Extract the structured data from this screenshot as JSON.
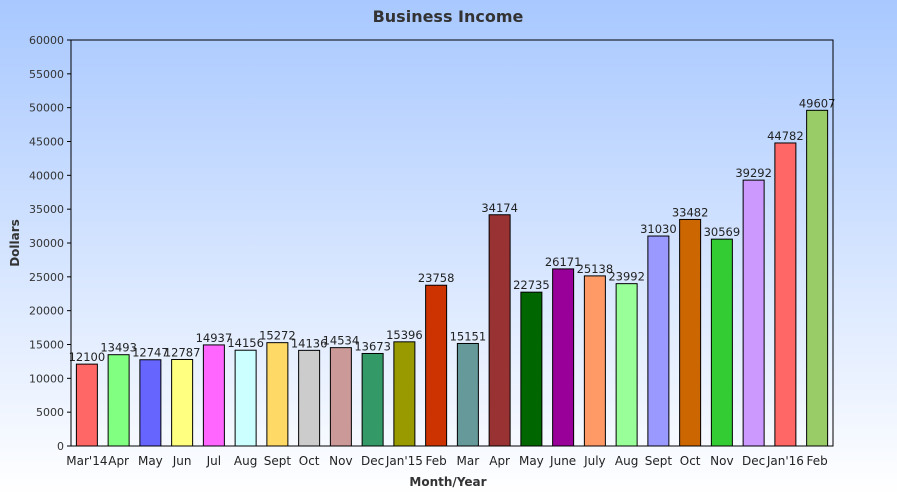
{
  "chart_data": {
    "type": "bar",
    "title": "Business Income",
    "xlabel": "Month/Year",
    "ylabel": "Dollars",
    "ylim": [
      0,
      60000
    ],
    "yticks": [
      0,
      5000,
      10000,
      15000,
      20000,
      25000,
      30000,
      35000,
      40000,
      45000,
      50000,
      55000,
      60000
    ],
    "grid": false,
    "categories": [
      "Mar'14",
      "Apr",
      "May",
      "Jun",
      "Jul",
      "Aug",
      "Sept",
      "Oct",
      "Nov",
      "Dec",
      "Jan'15",
      "Feb",
      "Mar",
      "Apr",
      "May",
      "June",
      "July",
      "Aug",
      "Sept",
      "Oct",
      "Nov",
      "Dec",
      "Jan'16",
      "Feb"
    ],
    "values": [
      12100,
      13493,
      12747,
      12787,
      14937,
      14156,
      15272,
      14136,
      14534,
      13673,
      15396,
      23758,
      15151,
      34174,
      22735,
      26171,
      25138,
      23992,
      31030,
      33482,
      30569,
      39292,
      44782,
      49607
    ],
    "colors": [
      "#ff6666",
      "#80ff80",
      "#6666ff",
      "#ffff80",
      "#ff66ff",
      "#ccffff",
      "#ffd966",
      "#cccccc",
      "#cc9999",
      "#339966",
      "#999900",
      "#cc3300",
      "#669999",
      "#993333",
      "#006600",
      "#990099",
      "#ff9966",
      "#99ff99",
      "#9999ff",
      "#cc6600",
      "#33cc33",
      "#cc99ff",
      "#ff6666",
      "#99cc66"
    ],
    "background_gradient": [
      "#a8c8ff",
      "#ffffff"
    ]
  }
}
